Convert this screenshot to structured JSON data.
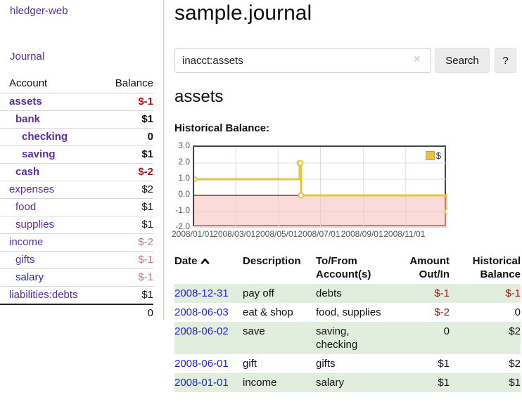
{
  "app": {
    "title": "hledger-web",
    "nav": [
      {
        "label": "Journal"
      }
    ]
  },
  "sidebar": {
    "headers": {
      "account": "Account",
      "balance": "Balance"
    },
    "accounts": [
      {
        "name": "assets",
        "depth": 1,
        "bold": true,
        "balance": "$-1",
        "balance_style": "neg-strong",
        "link_style": "purple"
      },
      {
        "name": "bank",
        "depth": 2,
        "bold": true,
        "balance": "$1",
        "balance_style": "plain",
        "link_style": "purple"
      },
      {
        "name": "checking",
        "depth": 3,
        "bold": true,
        "balance": "0",
        "balance_style": "plain",
        "link_style": "purple"
      },
      {
        "name": "saving",
        "depth": 3,
        "bold": true,
        "balance": "$1",
        "balance_style": "plain",
        "link_style": "purple"
      },
      {
        "name": "cash",
        "depth": 2,
        "bold": true,
        "balance": "$-2",
        "balance_style": "neg-strong",
        "link_style": "purple"
      },
      {
        "name": "expenses",
        "depth": 1,
        "bold": false,
        "balance": "$2",
        "balance_style": "plain",
        "link_style": "purple"
      },
      {
        "name": "food",
        "depth": 2,
        "bold": false,
        "balance": "$1",
        "balance_style": "plain",
        "link_style": "purple"
      },
      {
        "name": "supplies",
        "depth": 2,
        "bold": false,
        "balance": "$1",
        "balance_style": "plain",
        "link_style": "purple"
      },
      {
        "name": "income",
        "depth": 1,
        "bold": false,
        "balance": "$-2",
        "balance_style": "neg-soft",
        "link_style": "purple"
      },
      {
        "name": "gifts",
        "depth": 2,
        "bold": false,
        "balance": "$-1",
        "balance_style": "neg-soft",
        "link_style": "purple"
      },
      {
        "name": "salary",
        "depth": 2,
        "bold": false,
        "balance": "$-1",
        "balance_style": "neg-soft",
        "link_style": "blue"
      },
      {
        "name": "liabilities:debts",
        "depth": 1,
        "bold": false,
        "balance": "$1",
        "balance_style": "plain",
        "link_style": "purple"
      }
    ],
    "total": "0"
  },
  "main": {
    "title": "sample.journal",
    "search": {
      "value": "inacct:assets",
      "clear_icon": "×",
      "button_label": "Search",
      "help_label": "?"
    },
    "account_heading": "assets",
    "chart_label": "Historical Balance:"
  },
  "chart_data": {
    "type": "line",
    "step": true,
    "title": "Historical Balance",
    "series": [
      {
        "name": "$",
        "color": "#edc240",
        "points": [
          [
            "2008-01-01",
            1
          ],
          [
            "2008-06-01",
            2
          ],
          [
            "2008-06-02",
            2
          ],
          [
            "2008-06-03",
            0
          ],
          [
            "2008-12-31",
            -1
          ]
        ]
      }
    ],
    "xrange": [
      "2008-01-01",
      "2008-12-31"
    ],
    "ylim": [
      -2,
      3
    ],
    "yticks": [
      {
        "v": 3,
        "label": "3.0"
      },
      {
        "v": 2,
        "label": "2.0"
      },
      {
        "v": 1,
        "label": "1.0"
      },
      {
        "v": 0,
        "label": "0.0"
      },
      {
        "v": -1,
        "label": "-1.0"
      },
      {
        "v": -2,
        "label": "-2.0"
      }
    ],
    "xticks": [
      {
        "date": "2008-01-01",
        "label": "2008/01/01"
      },
      {
        "date": "2008-03-01",
        "label": "2008/03/01"
      },
      {
        "date": "2008-05-01",
        "label": "2008/05/01"
      },
      {
        "date": "2008-07-01",
        "label": "2008/07/01"
      },
      {
        "date": "2008-09-01",
        "label": "2008/09/01"
      },
      {
        "date": "2008-11-01",
        "label": "2008/11/01"
      }
    ],
    "grid": true,
    "legend_position": "top-right",
    "negative_region": {
      "from": 0,
      "to": -2
    }
  },
  "transactions": {
    "headers": {
      "date": "Date",
      "description": "Description",
      "account": "To/From Account(s)",
      "amount": "Amount Out/In",
      "balance": "Historical Balance"
    },
    "sort_icon": "chevron-up",
    "rows": [
      {
        "date": "2008-12-31",
        "description": "pay off",
        "accounts": "debts",
        "amount": "$-1",
        "amount_neg": true,
        "balance": "$-1",
        "balance_neg": true
      },
      {
        "date": "2008-06-03",
        "description": "eat & shop",
        "accounts": "food, supplies",
        "amount": "$-2",
        "amount_neg": true,
        "balance": "0",
        "balance_neg": false
      },
      {
        "date": "2008-06-02",
        "description": "save",
        "accounts": "saving, checking",
        "amount": "0",
        "amount_neg": false,
        "balance": "$2",
        "balance_neg": false
      },
      {
        "date": "2008-06-01",
        "description": "gift",
        "accounts": "gifts",
        "amount": "$1",
        "amount_neg": false,
        "balance": "$2",
        "balance_neg": false
      },
      {
        "date": "2008-01-01",
        "description": "income",
        "accounts": "salary",
        "amount": "$1",
        "amount_neg": false,
        "balance": "$1",
        "balance_neg": false
      }
    ]
  },
  "colors": {
    "link_purple": "#5b2d9e",
    "link_blue": "#2222dd",
    "negative_strong": "#a31515",
    "negative_soft": "#bd7575",
    "row_stripe": "#e1eedd",
    "series_yellow": "#edc240",
    "chart_negative_bg": "#f7bcbc",
    "chart_zero_line": "#8b0000"
  }
}
